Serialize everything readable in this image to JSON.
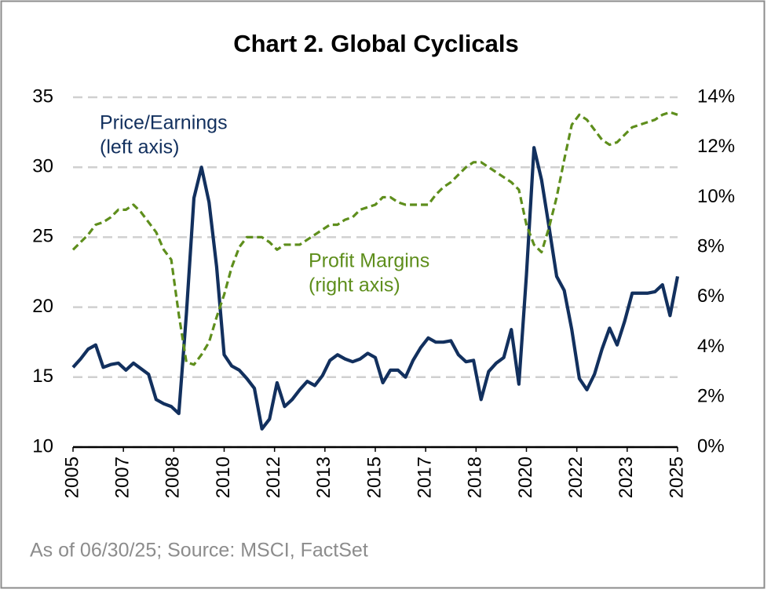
{
  "chart_data": {
    "type": "line",
    "title": "Chart 2. Global Cyclicals",
    "annotations": [
      "Price/Earnings",
      "(left axis)",
      "Profit Margins",
      "(right axis)"
    ],
    "source": "As of 06/30/25; Source: MSCI, FactSet",
    "x": [
      2005.5,
      2005.75,
      2006,
      2006.25,
      2006.5,
      2006.75,
      2007,
      2007.25,
      2007.5,
      2007.75,
      2008,
      2008.25,
      2008.5,
      2008.75,
      2009,
      2009.25,
      2009.5,
      2009.75,
      2010,
      2010.25,
      2010.5,
      2010.75,
      2011,
      2011.25,
      2011.5,
      2011.75,
      2012,
      2012.25,
      2012.5,
      2012.75,
      2013,
      2013.25,
      2013.5,
      2013.75,
      2014,
      2014.25,
      2014.5,
      2014.75,
      2015,
      2015.25,
      2015.5,
      2015.75,
      2016,
      2016.25,
      2016.5,
      2016.75,
      2017,
      2017.25,
      2017.5,
      2017.75,
      2018,
      2018.25,
      2018.5,
      2018.75,
      2019,
      2019.25,
      2019.5,
      2019.75,
      2020,
      2020.25,
      2020.5,
      2020.75,
      2021,
      2021.25,
      2021.5,
      2021.75,
      2022,
      2022.25,
      2022.5,
      2022.75,
      2023,
      2023.25,
      2023.5,
      2023.75,
      2024,
      2024.25,
      2024.5,
      2024.75,
      2025,
      2025.25,
      2025.5
    ],
    "xlim": [
      2005.5,
      2025.5
    ],
    "xticks": [
      {
        "value": 2005.5,
        "label": "2005"
      },
      {
        "value": 2007.1667,
        "label": "2007"
      },
      {
        "value": 2008.8333,
        "label": "2008"
      },
      {
        "value": 2010.5,
        "label": "2010"
      },
      {
        "value": 2012.1667,
        "label": "2012"
      },
      {
        "value": 2013.8333,
        "label": "2013"
      },
      {
        "value": 2015.5,
        "label": "2015"
      },
      {
        "value": 2017.1667,
        "label": "2017"
      },
      {
        "value": 2018.8333,
        "label": "2018"
      },
      {
        "value": 2020.5,
        "label": "2020"
      },
      {
        "value": 2022.1667,
        "label": "2022"
      },
      {
        "value": 2023.8333,
        "label": "2023"
      },
      {
        "value": 2025.5,
        "label": "2025"
      }
    ],
    "ylim": [
      10,
      35
    ],
    "yticks": [
      10,
      15,
      20,
      25,
      30,
      35
    ],
    "y2lim": [
      0,
      14
    ],
    "y2ticks": [
      {
        "value": 0,
        "label": "0%"
      },
      {
        "value": 2,
        "label": "2%"
      },
      {
        "value": 4,
        "label": "4%"
      },
      {
        "value": 6,
        "label": "6%"
      },
      {
        "value": 8,
        "label": "8%"
      },
      {
        "value": 10,
        "label": "10%"
      },
      {
        "value": 12,
        "label": "12%"
      },
      {
        "value": 14,
        "label": "14%"
      }
    ],
    "grid": true,
    "series": [
      {
        "color": "#12305e",
        "dash": false,
        "axis": "y",
        "values": [
          15.7,
          16.3,
          17.0,
          17.3,
          15.7,
          15.9,
          16.0,
          15.5,
          16.0,
          15.6,
          15.2,
          13.4,
          13.1,
          12.9,
          12.4,
          19.5,
          27.8,
          30.0,
          27.5,
          22.9,
          16.6,
          15.8,
          15.5,
          14.9,
          14.2,
          11.3,
          12.0,
          14.6,
          12.9,
          13.4,
          14.1,
          14.7,
          14.4,
          15.1,
          16.2,
          16.6,
          16.3,
          16.1,
          16.3,
          16.7,
          16.4,
          14.6,
          15.5,
          15.5,
          15.0,
          16.2,
          17.1,
          17.8,
          17.5,
          17.5,
          17.6,
          16.6,
          16.1,
          16.2,
          13.4,
          15.4,
          16.0,
          16.4,
          18.4,
          14.5,
          22.3,
          31.4,
          29.1,
          25.7,
          22.2,
          21.2,
          18.4,
          14.9,
          14.1,
          15.2,
          17.0,
          18.5,
          17.3,
          19.0,
          21.0,
          21.0,
          21.0,
          21.1,
          21.6,
          19.4,
          22.2
        ]
      },
      {
        "color": "#5e8e1c",
        "dash": true,
        "axis": "y2",
        "values": [
          7.9,
          8.2,
          8.5,
          8.9,
          9.0,
          9.2,
          9.5,
          9.5,
          9.7,
          9.4,
          9.0,
          8.6,
          7.9,
          7.5,
          5.3,
          3.4,
          3.3,
          3.7,
          4.2,
          5.2,
          6.1,
          7.2,
          8.0,
          8.4,
          8.4,
          8.4,
          8.2,
          7.9,
          8.1,
          8.1,
          8.1,
          8.3,
          8.5,
          8.7,
          8.9,
          8.9,
          9.1,
          9.2,
          9.5,
          9.6,
          9.7,
          10.0,
          10.0,
          9.8,
          9.7,
          9.7,
          9.7,
          9.7,
          10.1,
          10.4,
          10.6,
          10.9,
          11.2,
          11.4,
          11.4,
          11.2,
          11.0,
          10.8,
          10.6,
          10.3,
          8.9,
          8.1,
          7.8,
          8.8,
          10.0,
          11.5,
          12.9,
          13.3,
          13.1,
          12.7,
          12.3,
          12.1,
          12.2,
          12.5,
          12.8,
          12.9,
          13.0,
          13.1,
          13.3,
          13.4,
          13.3
        ]
      }
    ]
  }
}
